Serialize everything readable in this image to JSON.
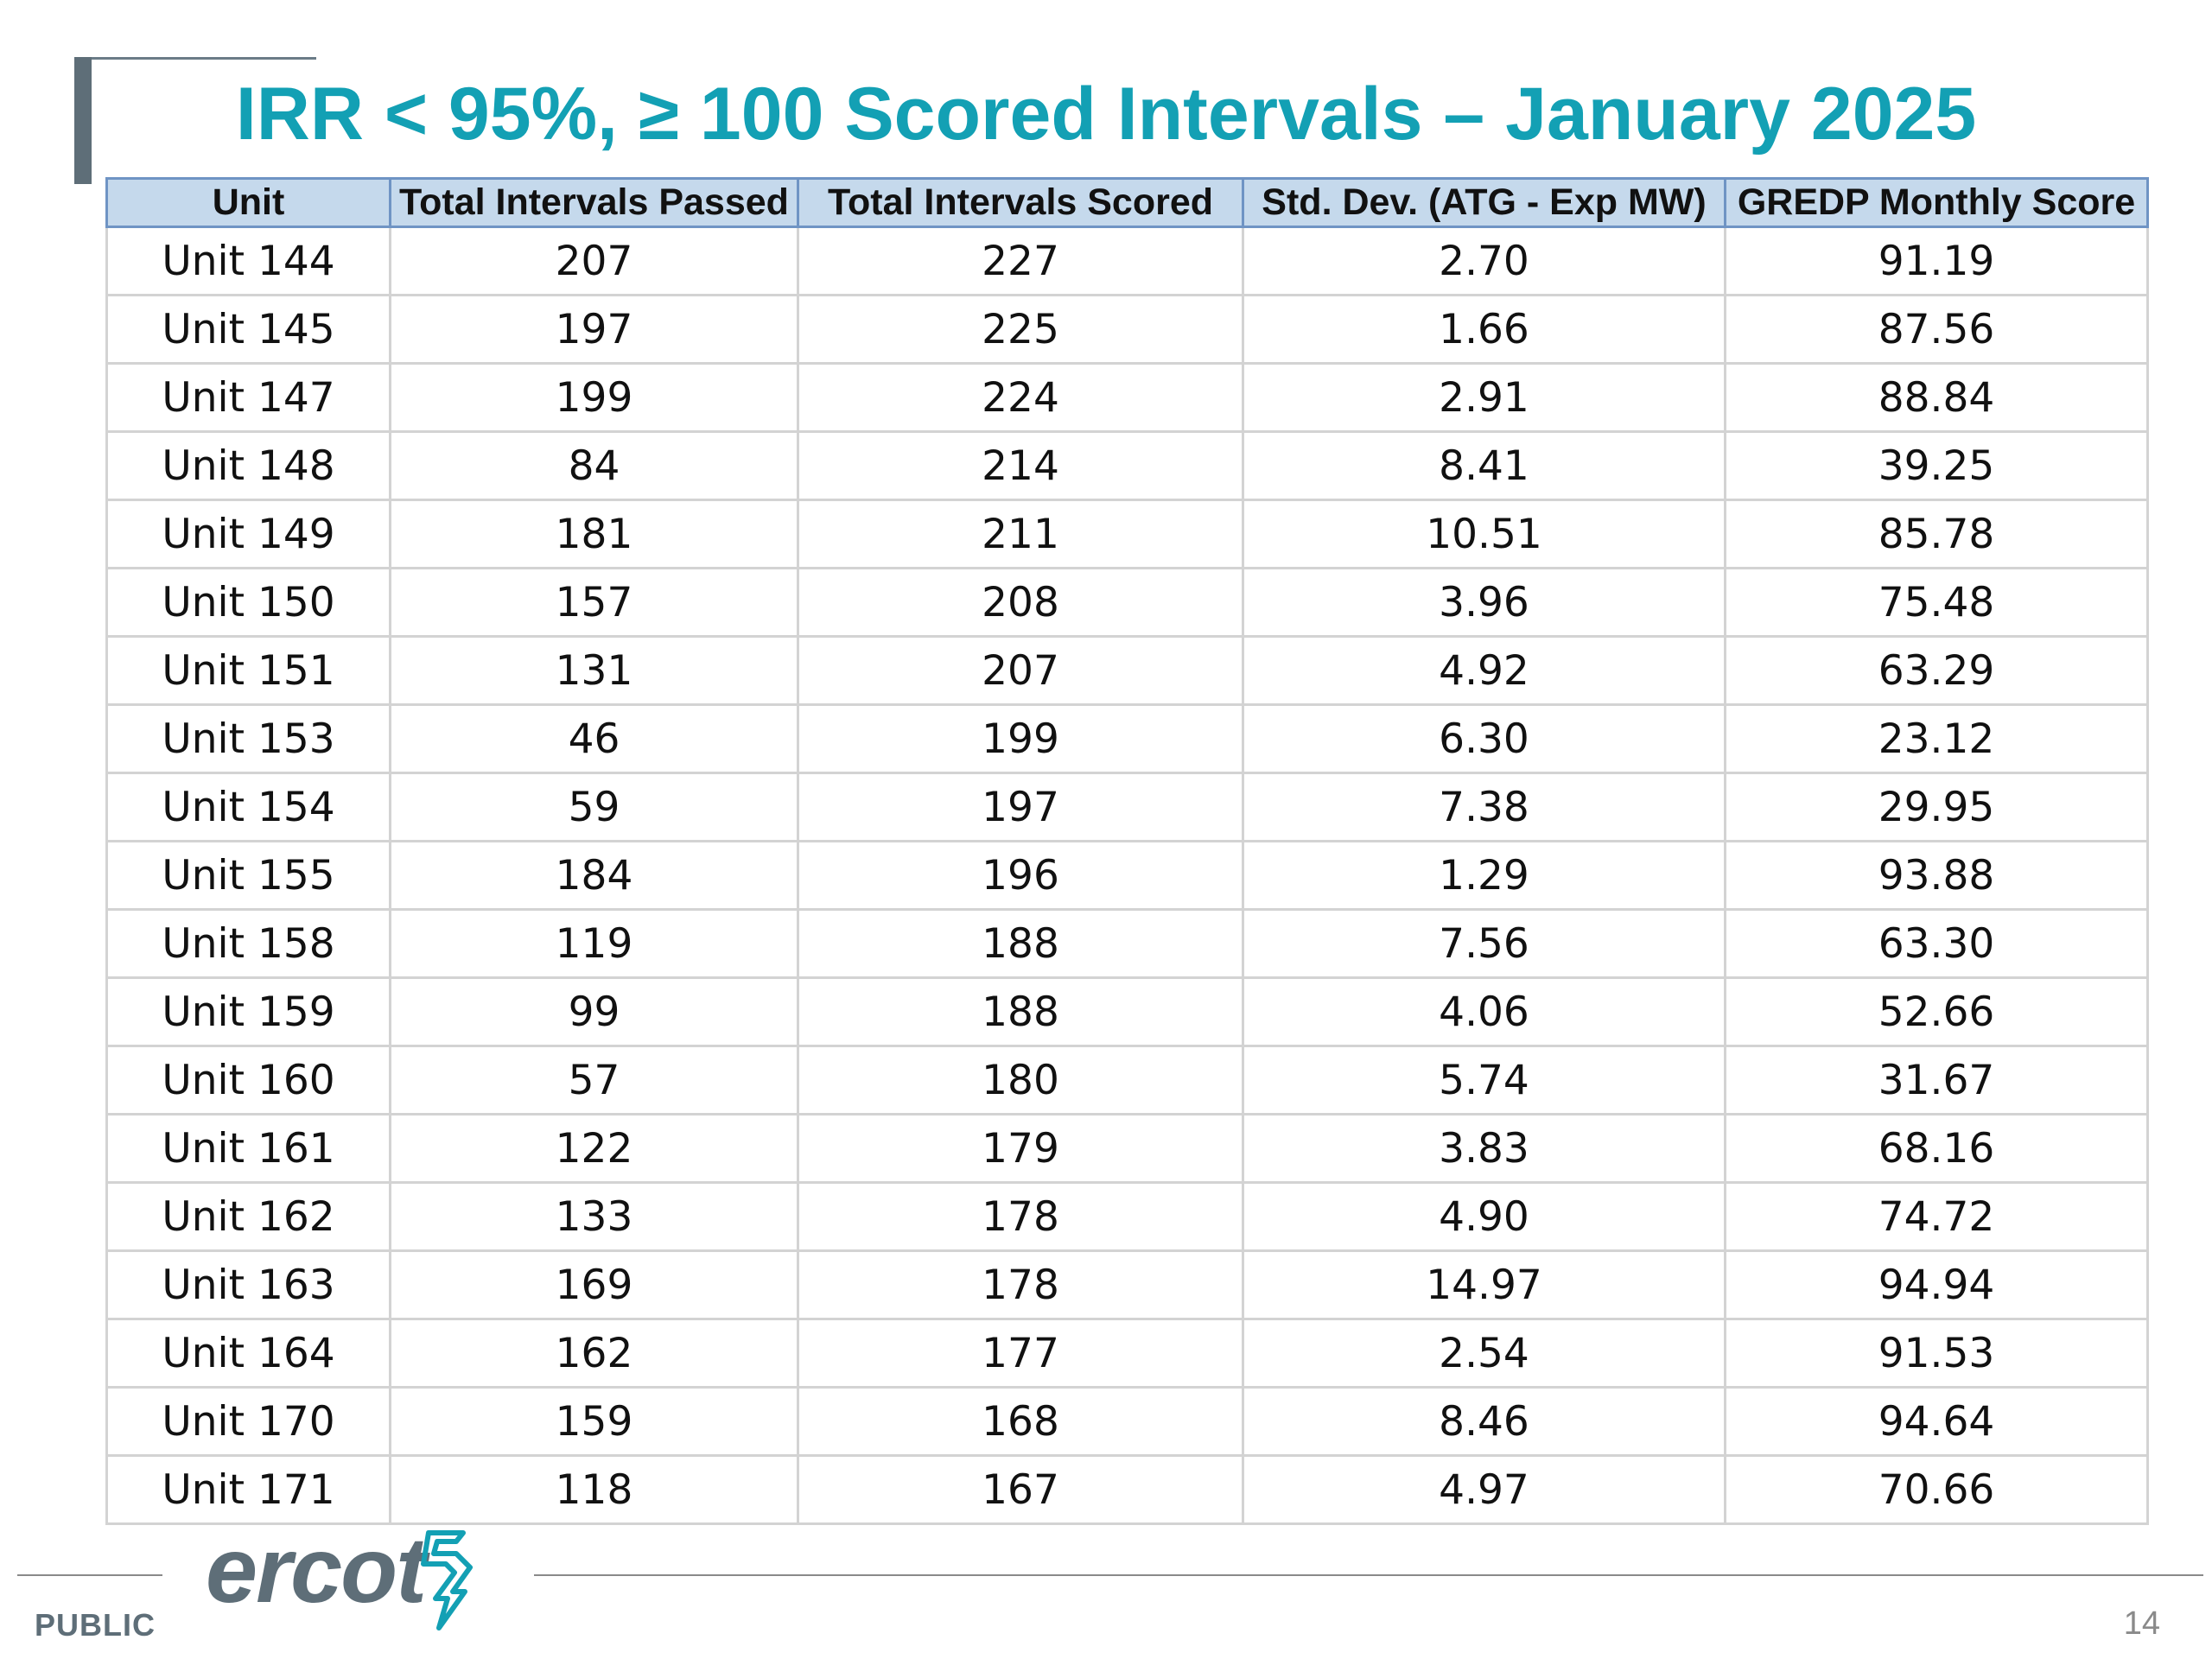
{
  "slide": {
    "title": "IRR < 95%, ≥ 100 Scored Intervals – January 2025"
  },
  "table": {
    "headers": [
      "Unit",
      "Total Intervals Passed",
      "Total Intervals Scored",
      "Std. Dev. (ATG - Exp MW)",
      "GREDP Monthly Score"
    ],
    "rows": [
      [
        "Unit 144",
        "207",
        "227",
        "2.70",
        "91.19"
      ],
      [
        "Unit 145",
        "197",
        "225",
        "1.66",
        "87.56"
      ],
      [
        "Unit 147",
        "199",
        "224",
        "2.91",
        "88.84"
      ],
      [
        "Unit 148",
        "84",
        "214",
        "8.41",
        "39.25"
      ],
      [
        "Unit 149",
        "181",
        "211",
        "10.51",
        "85.78"
      ],
      [
        "Unit 150",
        "157",
        "208",
        "3.96",
        "75.48"
      ],
      [
        "Unit 151",
        "131",
        "207",
        "4.92",
        "63.29"
      ],
      [
        "Unit 153",
        "46",
        "199",
        "6.30",
        "23.12"
      ],
      [
        "Unit 154",
        "59",
        "197",
        "7.38",
        "29.95"
      ],
      [
        "Unit 155",
        "184",
        "196",
        "1.29",
        "93.88"
      ],
      [
        "Unit 158",
        "119",
        "188",
        "7.56",
        "63.30"
      ],
      [
        "Unit 159",
        "99",
        "188",
        "4.06",
        "52.66"
      ],
      [
        "Unit 160",
        "57",
        "180",
        "5.74",
        "31.67"
      ],
      [
        "Unit 161",
        "122",
        "179",
        "3.83",
        "68.16"
      ],
      [
        "Unit 162",
        "133",
        "178",
        "4.90",
        "74.72"
      ],
      [
        "Unit 163",
        "169",
        "178",
        "14.97",
        "94.94"
      ],
      [
        "Unit 164",
        "162",
        "177",
        "2.54",
        "91.53"
      ],
      [
        "Unit 170",
        "159",
        "168",
        "8.46",
        "94.64"
      ],
      [
        "Unit 171",
        "118",
        "167",
        "4.97",
        "70.66"
      ]
    ]
  },
  "footer": {
    "logo_text": "ercot",
    "classification": "PUBLIC",
    "page_number": "14"
  },
  "colors": {
    "title": "#13a0b4",
    "header_fill": "#c5d9ec",
    "header_border": "#6f94c4",
    "logo_gray": "#5e6e78",
    "logo_mark": "#13a0b4"
  },
  "icons": {
    "logo_mark": "ercot-lightning-mark-icon"
  }
}
